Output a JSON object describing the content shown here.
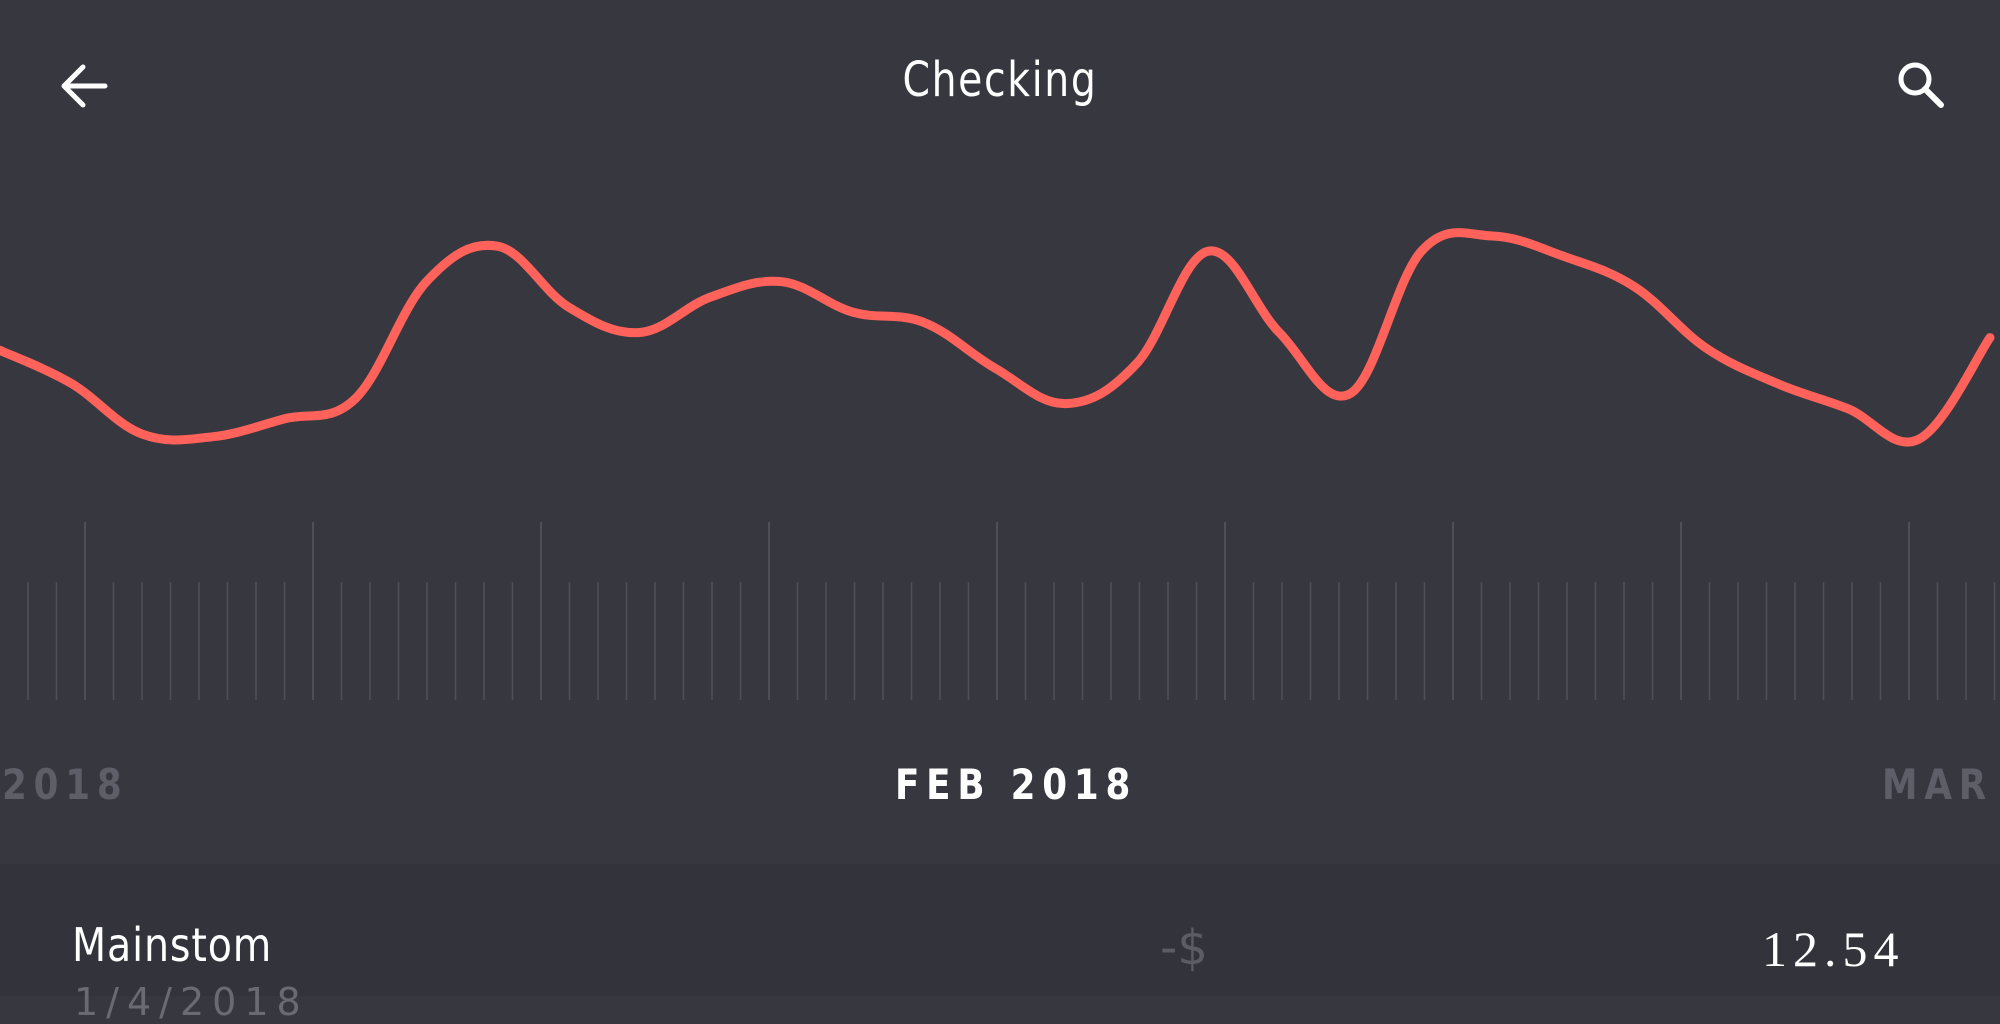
{
  "header": {
    "title": "Checking",
    "back_icon": "arrow-left-icon",
    "search_icon": "search-icon"
  },
  "colors": {
    "background": "#373740",
    "list_background": "#33333c",
    "line": "#ff625a",
    "ticks": "#4f4f59",
    "muted_text": "#5e5e68"
  },
  "timeline": {
    "prev_month": "2018",
    "current_month": "FEB 2018",
    "next_month": "MAR"
  },
  "chart_data": {
    "type": "line",
    "x": [
      0,
      1,
      2,
      3,
      4,
      5,
      6,
      7,
      8,
      9,
      10,
      11,
      12,
      13,
      14,
      15,
      16,
      17,
      18,
      19,
      20,
      21,
      22,
      23,
      24,
      25,
      26,
      27,
      28
    ],
    "y": [
      0.55,
      0.42,
      0.22,
      0.21,
      0.28,
      0.36,
      0.82,
      0.96,
      0.72,
      0.62,
      0.76,
      0.82,
      0.7,
      0.66,
      0.48,
      0.34,
      0.5,
      0.94,
      0.62,
      0.38,
      0.94,
      1.0,
      0.92,
      0.8,
      0.56,
      0.42,
      0.32,
      0.2,
      0.6
    ],
    "grid": false,
    "legend": "none"
  },
  "transactions": [
    {
      "name": "Mainstom",
      "date": "1/4/2018",
      "sign": "-$",
      "amount": "12.54"
    }
  ]
}
